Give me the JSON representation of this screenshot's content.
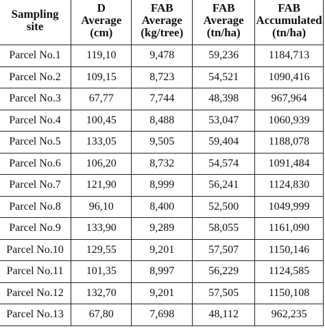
{
  "table": {
    "headers": [
      [
        "Sampling",
        "site"
      ],
      [
        "D",
        "Average",
        "(cm)"
      ],
      [
        "FAB",
        "Average",
        "(kg/tree)"
      ],
      [
        "FAB",
        "Average",
        "(tn/ha)"
      ],
      [
        "FAB",
        "Accumulated",
        "(tn/ha)"
      ]
    ],
    "rows": [
      [
        "Parcel No.1",
        "119,10",
        "9,478",
        "59,236",
        "1184,713"
      ],
      [
        "Parcel No.2",
        "109,15",
        "8,723",
        "54,521",
        "1090,416"
      ],
      [
        "Parcel No.3",
        "67,77",
        "7,744",
        "48,398",
        "967,964"
      ],
      [
        "Parcel No.4",
        "100,45",
        "8,488",
        "53,047",
        "1060,939"
      ],
      [
        "Parcel No.5",
        "133,05",
        "9,505",
        "59,404",
        "1188,078"
      ],
      [
        "Parcel No.6",
        "106,20",
        "8,732",
        "54,574",
        "1091,484"
      ],
      [
        "Parcel No.7",
        "121,90",
        "8,999",
        "56,241",
        "1124,830"
      ],
      [
        "Parcel No.8",
        "96,10",
        "8,400",
        "52,500",
        "1049,999"
      ],
      [
        "Parcel No.9",
        "133,90",
        "9,289",
        "58,055",
        "1161,090"
      ],
      [
        "Parcel No.10",
        "129,55",
        "9,201",
        "57,507",
        "1150,146"
      ],
      [
        "Parcel No.11",
        "101,35",
        "8,997",
        "56,229",
        "1124,585"
      ],
      [
        "Parcel No.12",
        "132,70",
        "9,201",
        "57,505",
        "1150,108"
      ],
      [
        "Parcel No.13",
        "67,80",
        "7,698",
        "48,112",
        "962,235"
      ]
    ]
  }
}
